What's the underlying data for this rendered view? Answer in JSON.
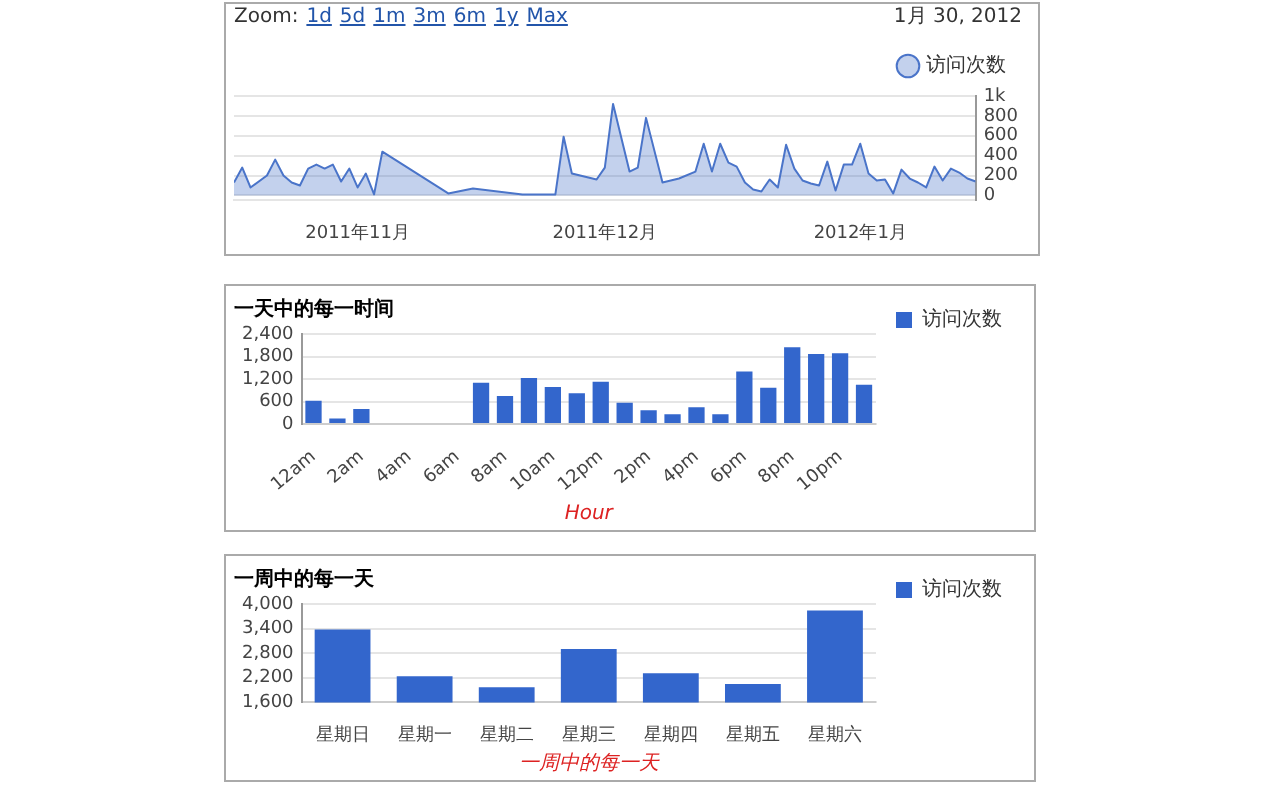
{
  "chart_data": [
    {
      "type": "area",
      "annotations": [
        "Zoom:",
        "1d",
        "5d",
        "1m",
        "3m",
        "6m",
        "1y",
        "Max",
        "1月 30, 2012"
      ],
      "legend": "top right",
      "grid": "y",
      "xlim": [
        "2011-11-01",
        "2012-01-30"
      ],
      "xticks": [
        {
          "value": "2011-11-16",
          "label": "2011年11月"
        },
        {
          "value": "2011-12-16",
          "label": "2011年12月"
        },
        {
          "value": "2012-01-16",
          "label": "2012年1月"
        }
      ],
      "ylim": [
        -50,
        1000
      ],
      "yticks": [
        0,
        200,
        400,
        600,
        800,
        {
          "value": 1000,
          "label": "1k"
        }
      ],
      "series": [
        {
          "name": "访问次数",
          "color": "#4a74c9",
          "x": [
            "2011-11-01",
            "2011-11-02",
            "2011-11-03",
            "2011-11-05",
            "2011-11-06",
            "2011-11-07",
            "2011-11-08",
            "2011-11-09",
            "2011-11-10",
            "2011-11-11",
            "2011-11-12",
            "2011-11-13",
            "2011-11-14",
            "2011-11-15",
            "2011-11-16",
            "2011-11-17",
            "2011-11-18",
            "2011-11-19",
            "2011-11-27",
            "2011-11-30",
            "2011-12-06",
            "2011-12-10",
            "2011-12-11",
            "2011-12-12",
            "2011-12-15",
            "2011-12-16",
            "2011-12-17",
            "2011-12-19",
            "2011-12-20",
            "2011-12-21",
            "2011-12-23",
            "2011-12-25",
            "2011-12-27",
            "2011-12-28",
            "2011-12-29",
            "2011-12-30",
            "2011-12-31",
            "2012-01-01",
            "2012-01-02",
            "2012-01-03",
            "2012-01-04",
            "2012-01-05",
            "2012-01-06",
            "2012-01-07",
            "2012-01-08",
            "2012-01-09",
            "2012-01-10",
            "2012-01-11",
            "2012-01-12",
            "2012-01-13",
            "2012-01-14",
            "2012-01-15",
            "2012-01-16",
            "2012-01-17",
            "2012-01-18",
            "2012-01-19",
            "2012-01-20",
            "2012-01-21",
            "2012-01-22",
            "2012-01-23",
            "2012-01-24",
            "2012-01-25",
            "2012-01-26",
            "2012-01-27",
            "2012-01-28",
            "2012-01-29",
            "2012-01-30"
          ],
          "values": [
            130,
            280,
            80,
            200,
            360,
            200,
            130,
            100,
            270,
            310,
            270,
            310,
            140,
            270,
            80,
            220,
            10,
            440,
            20,
            70,
            10,
            10,
            590,
            220,
            160,
            280,
            920,
            240,
            280,
            780,
            130,
            170,
            240,
            520,
            240,
            520,
            330,
            290,
            130,
            60,
            40,
            160,
            80,
            510,
            270,
            150,
            120,
            100,
            340,
            50,
            310,
            310,
            520,
            220,
            150,
            160,
            20,
            260,
            170,
            130,
            80,
            290,
            150,
            270,
            230,
            170,
            140
          ]
        }
      ]
    },
    {
      "type": "bar",
      "title": "一天中的每一时间",
      "xlabel": "Hour",
      "legend": "right",
      "grid": "y",
      "categories": [
        "12am",
        null,
        "2am",
        null,
        "4am",
        null,
        "6am",
        null,
        "8am",
        null,
        "10am",
        null,
        "12pm",
        null,
        "2pm",
        null,
        "4pm",
        null,
        "6pm",
        null,
        "8pm",
        null,
        "10pm",
        null
      ],
      "ylim": [
        0,
        2400
      ],
      "yticks": [
        0,
        600,
        {
          "value": 1200,
          "label": "1,200"
        },
        {
          "value": 1800,
          "label": "1,800"
        },
        {
          "value": 2400,
          "label": "2,400"
        }
      ],
      "series": [
        {
          "name": "访问次数",
          "color": "#3366cc",
          "values": [
            620,
            150,
            400,
            0,
            0,
            0,
            0,
            1100,
            750,
            1230,
            990,
            820,
            1130,
            570,
            370,
            260,
            450,
            260,
            1400,
            970,
            2050,
            1870,
            1890,
            1050
          ]
        }
      ]
    },
    {
      "type": "bar",
      "title": "一周中的每一天",
      "xlabel": "一周中的每一天",
      "legend": "right",
      "grid": "y",
      "categories": [
        "星期日",
        "星期一",
        "星期二",
        "星期三",
        "星期四",
        "星期五",
        "星期六"
      ],
      "ylim": [
        1600,
        4000
      ],
      "yticks": [
        {
          "value": 1600,
          "label": "1,600"
        },
        {
          "value": 2200,
          "label": "2,200"
        },
        {
          "value": 2800,
          "label": "2,800"
        },
        {
          "value": 3400,
          "label": "3,400"
        },
        {
          "value": 4000,
          "label": "4,000"
        }
      ],
      "series": [
        {
          "name": "访问次数",
          "color": "#3366cc",
          "values": [
            3380,
            2240,
            1970,
            2900,
            2310,
            2050,
            3840
          ]
        }
      ]
    }
  ]
}
